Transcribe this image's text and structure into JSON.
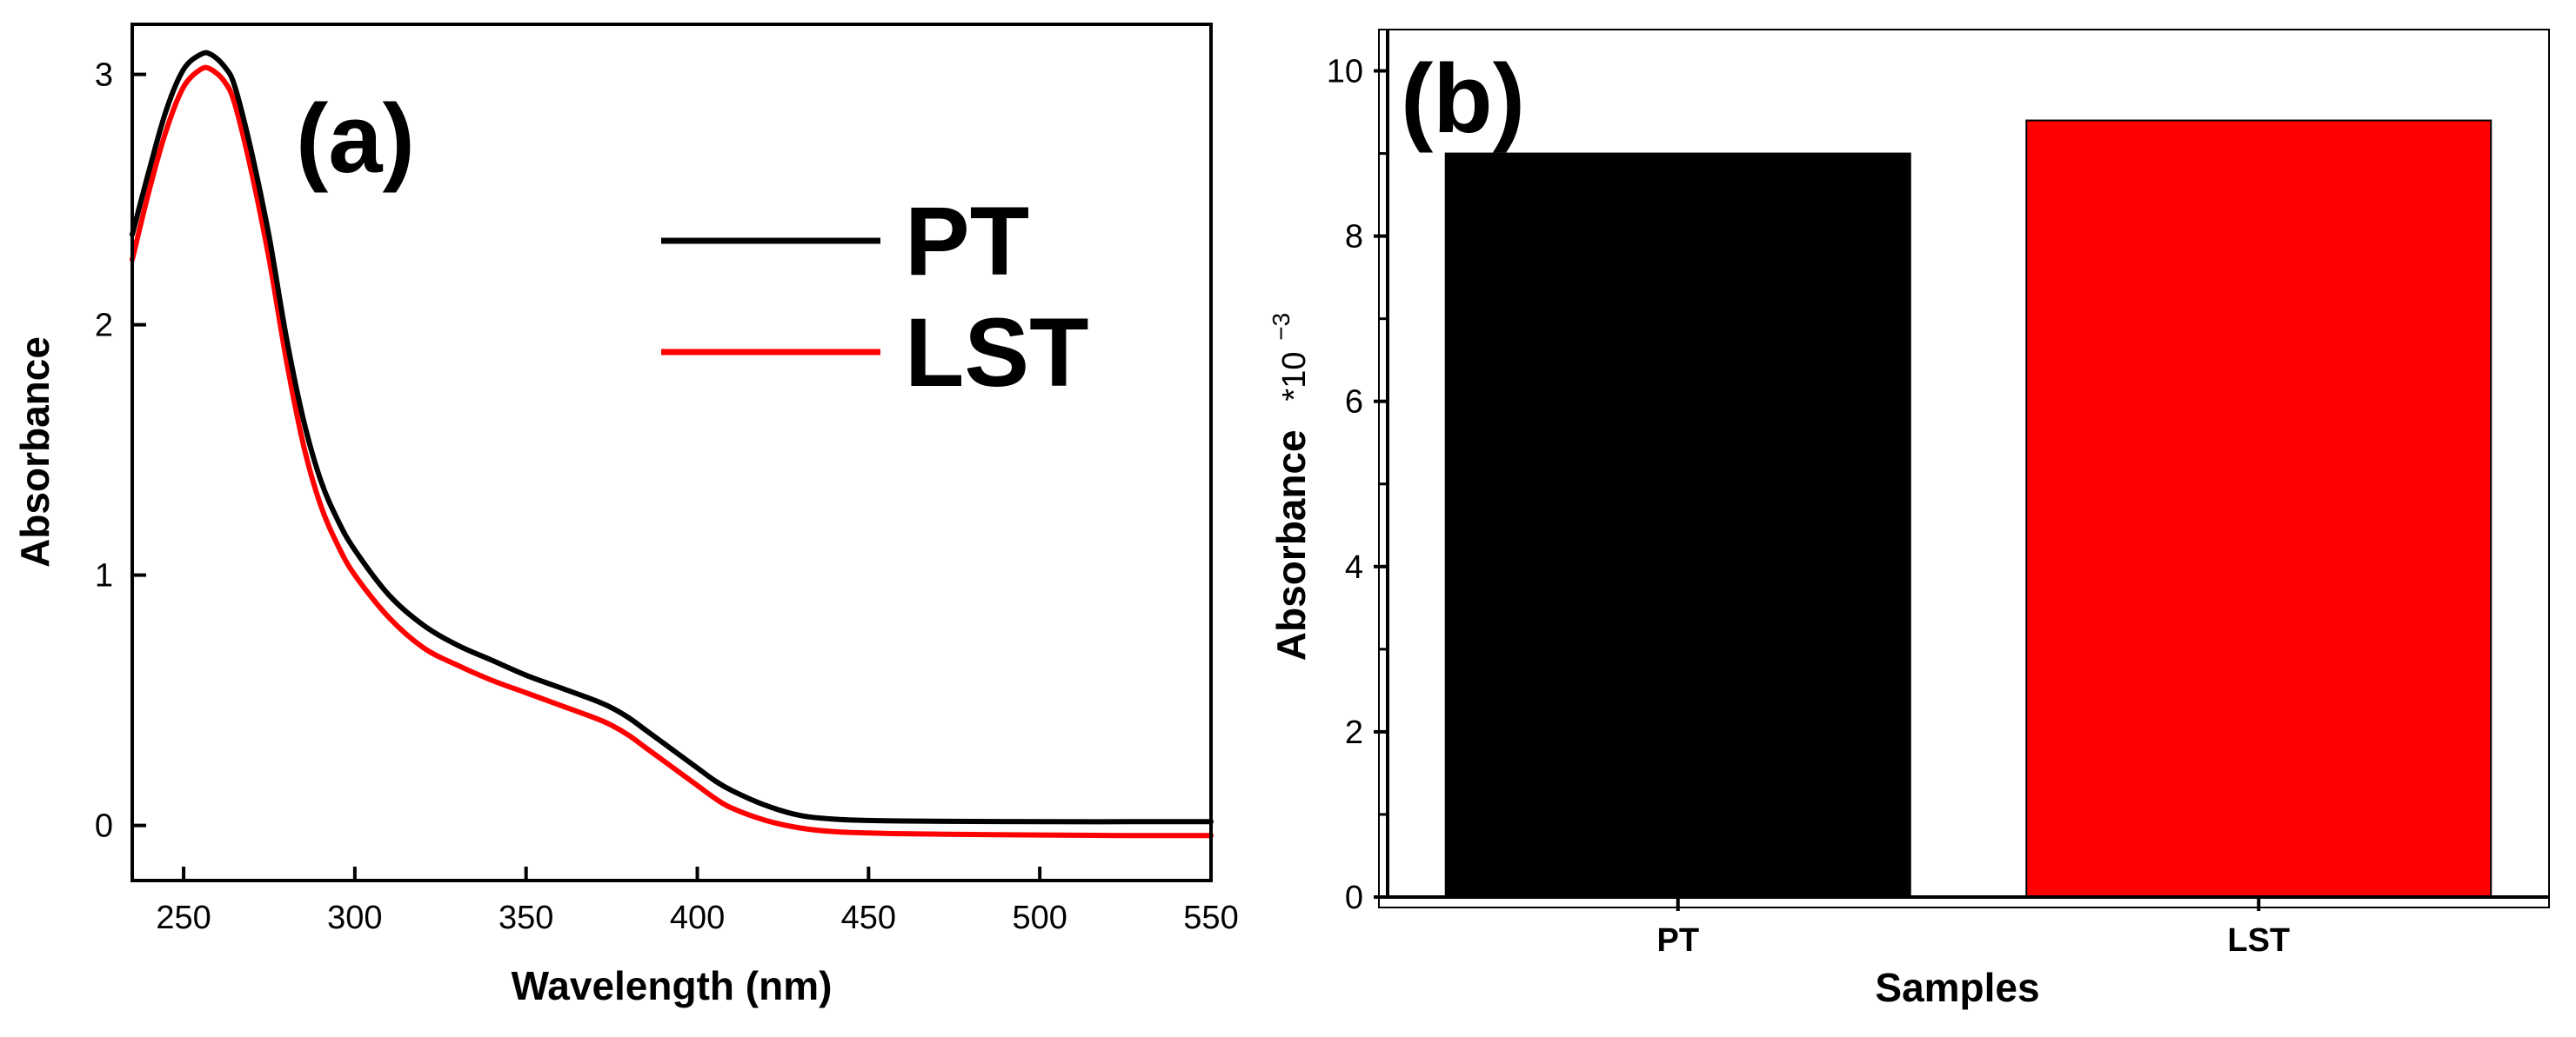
{
  "chart_data": [
    {
      "type": "line",
      "panel_label": "(a)",
      "xlabel": "Wavelength (nm)",
      "ylabel": "Absorbance",
      "xlim": [
        235,
        550
      ],
      "ylim": [
        -0.22,
        3.2
      ],
      "x_ticks": [
        250,
        300,
        350,
        400,
        450,
        500,
        550
      ],
      "y_ticks": [
        0,
        1,
        2,
        3
      ],
      "grid": false,
      "legend_position": "top-right",
      "series": [
        {
          "name": "PT",
          "color": "#000000",
          "x": [
            235,
            240,
            245,
            250,
            255,
            258,
            262,
            265,
            270,
            275,
            280,
            285,
            290,
            295,
            300,
            310,
            320,
            330,
            340,
            350,
            360,
            370,
            375,
            380,
            385,
            390,
            395,
            400,
            405,
            410,
            420,
            430,
            440,
            450,
            460,
            480,
            500,
            525,
            550
          ],
          "y": [
            2.36,
            2.62,
            2.86,
            3.02,
            3.08,
            3.08,
            3.03,
            2.95,
            2.68,
            2.35,
            1.95,
            1.62,
            1.38,
            1.22,
            1.1,
            0.92,
            0.8,
            0.72,
            0.66,
            0.6,
            0.55,
            0.5,
            0.47,
            0.43,
            0.38,
            0.33,
            0.28,
            0.23,
            0.18,
            0.14,
            0.08,
            0.04,
            0.025,
            0.02,
            0.018,
            0.016,
            0.015,
            0.015,
            0.015
          ]
        },
        {
          "name": "LST",
          "color": "#ff0000",
          "x": [
            235,
            240,
            245,
            250,
            255,
            258,
            262,
            265,
            270,
            275,
            280,
            285,
            290,
            295,
            300,
            310,
            320,
            330,
            340,
            350,
            360,
            370,
            375,
            380,
            385,
            390,
            395,
            400,
            405,
            410,
            420,
            430,
            440,
            450,
            460,
            480,
            500,
            525,
            550
          ],
          "y": [
            2.26,
            2.54,
            2.78,
            2.95,
            3.02,
            3.02,
            2.97,
            2.88,
            2.6,
            2.26,
            1.86,
            1.52,
            1.28,
            1.12,
            1.0,
            0.83,
            0.71,
            0.64,
            0.58,
            0.53,
            0.48,
            0.43,
            0.4,
            0.36,
            0.31,
            0.26,
            0.21,
            0.16,
            0.11,
            0.07,
            0.02,
            -0.01,
            -0.025,
            -0.03,
            -0.033,
            -0.036,
            -0.038,
            -0.04,
            -0.04
          ]
        }
      ]
    },
    {
      "type": "bar",
      "panel_label": "(b)",
      "xlabel": "Samples",
      "ylabel": "Absorbance",
      "ylabel_multiplier": "*10",
      "ylabel_exponent": "−3",
      "categories": [
        "PT",
        "LST"
      ],
      "values": [
        9.0,
        9.4
      ],
      "colors": [
        "#000000",
        "#ff0000"
      ],
      "ylim": [
        0,
        10.5
      ],
      "y_ticks": [
        0,
        2,
        4,
        6,
        8,
        10
      ],
      "grid": false
    }
  ]
}
